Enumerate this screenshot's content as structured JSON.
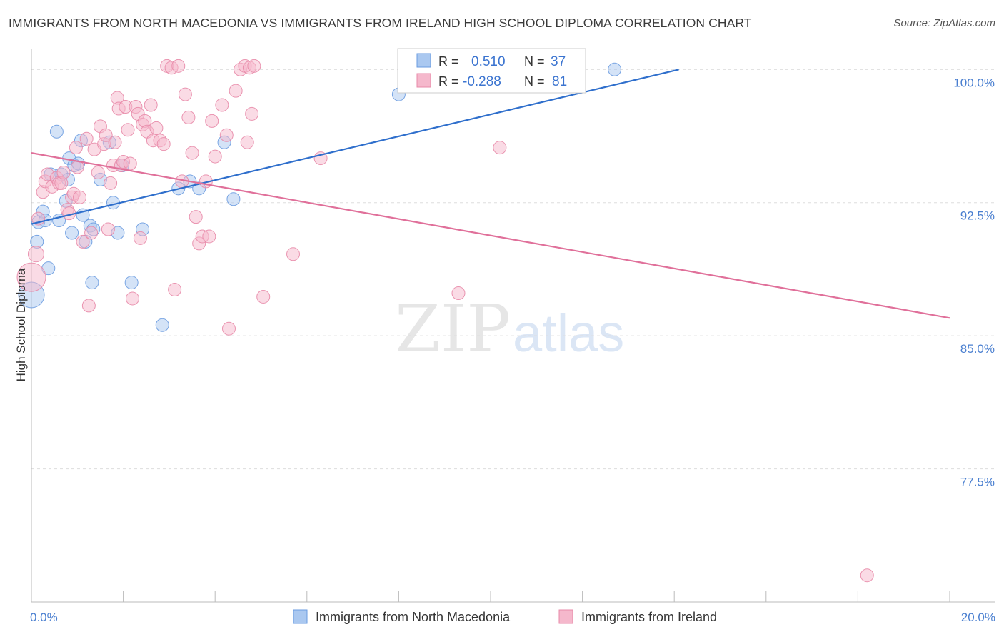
{
  "title": "IMMIGRANTS FROM NORTH MACEDONIA VS IMMIGRANTS FROM IRELAND HIGH SCHOOL DIPLOMA CORRELATION CHART",
  "source": "Source: ZipAtlas.com",
  "watermark": {
    "zip": "ZIP",
    "atlas": "atlas"
  },
  "colors": {
    "blue_fill": "#aac8f0",
    "blue_stroke": "#6a9be0",
    "blue_line": "#2f6fcc",
    "pink_fill": "#f5b8cc",
    "pink_stroke": "#e88aa8",
    "pink_line": "#e0709a",
    "tick_text": "#4a7fd0",
    "grid": "#dddddd"
  },
  "legend": {
    "rows": [
      {
        "r_label": "R =",
        "r_value": "0.510",
        "n_label": "N =",
        "n_value": "37",
        "series": "blue"
      },
      {
        "r_label": "R =",
        "r_value": "-0.288",
        "n_label": "N =",
        "n_value": "81",
        "series": "pink"
      }
    ]
  },
  "bottom_legend": [
    {
      "label": "Immigrants from North Macedonia",
      "series": "blue"
    },
    {
      "label": "Immigrants from Ireland",
      "series": "pink"
    }
  ],
  "chart_data": {
    "type": "scatter",
    "title": "IMMIGRANTS FROM NORTH MACEDONIA VS IMMIGRANTS FROM IRELAND HIGH SCHOOL DIPLOMA CORRELATION CHART",
    "xlabel": "",
    "ylabel": "High School Diploma",
    "xlim": [
      0,
      20
    ],
    "ylim": [
      70.0,
      101.5
    ],
    "x_tick_labels": [
      {
        "value": 0,
        "label": "0.0%"
      },
      {
        "value": 20,
        "label": "20.0%"
      }
    ],
    "y_tick_labels": [
      {
        "value": 77.5,
        "label": "77.5%"
      },
      {
        "value": 85.0,
        "label": "85.0%"
      },
      {
        "value": 92.5,
        "label": "92.5%"
      },
      {
        "value": 100.0,
        "label": "100.0%"
      }
    ],
    "y_grid": [
      77.5,
      85.0,
      92.5,
      100.0
    ],
    "series": [
      {
        "name": "Immigrants from North Macedonia",
        "color": "blue",
        "R": 0.51,
        "N": 37,
        "trend": {
          "x": [
            0.0,
            14.1
          ],
          "y": [
            91.3,
            100.0
          ]
        },
        "points": [
          [
            0.0,
            87.3,
            18
          ],
          [
            0.12,
            90.3,
            9
          ],
          [
            0.15,
            91.4,
            9
          ],
          [
            0.25,
            92.0,
            9
          ],
          [
            0.3,
            91.5,
            9
          ],
          [
            0.37,
            88.8,
            9
          ],
          [
            0.42,
            94.1,
            9
          ],
          [
            0.55,
            96.5,
            9
          ],
          [
            0.6,
            91.5,
            9
          ],
          [
            0.65,
            94.1,
            9
          ],
          [
            0.75,
            92.6,
            9
          ],
          [
            0.8,
            93.8,
            9
          ],
          [
            0.82,
            95.0,
            9
          ],
          [
            0.88,
            90.8,
            9
          ],
          [
            0.93,
            94.6,
            9
          ],
          [
            1.02,
            94.7,
            9
          ],
          [
            1.08,
            96.0,
            9
          ],
          [
            1.12,
            91.8,
            9
          ],
          [
            1.18,
            90.3,
            9
          ],
          [
            1.28,
            91.2,
            9
          ],
          [
            1.32,
            88.0,
            9
          ],
          [
            1.35,
            91.0,
            9
          ],
          [
            1.5,
            93.8,
            9
          ],
          [
            1.7,
            95.9,
            9
          ],
          [
            1.78,
            92.5,
            9
          ],
          [
            1.88,
            90.8,
            9
          ],
          [
            1.98,
            94.6,
            9
          ],
          [
            2.18,
            88.0,
            9
          ],
          [
            2.42,
            91.0,
            9
          ],
          [
            2.85,
            85.6,
            9
          ],
          [
            3.2,
            93.3,
            9
          ],
          [
            3.45,
            93.7,
            9
          ],
          [
            3.65,
            93.3,
            9
          ],
          [
            4.2,
            95.9,
            9
          ],
          [
            4.4,
            92.7,
            9
          ],
          [
            8.0,
            98.6,
            9
          ],
          [
            12.7,
            100.0,
            9
          ]
        ]
      },
      {
        "name": "Immigrants from Ireland",
        "color": "pink",
        "R": -0.288,
        "N": 81,
        "trend": {
          "x": [
            0.0,
            20.0
          ],
          "y": [
            95.3,
            86.0
          ]
        },
        "points": [
          [
            0.0,
            88.3,
            20
          ],
          [
            0.1,
            89.6,
            11
          ],
          [
            0.15,
            91.6,
            9
          ],
          [
            0.25,
            93.1,
            9
          ],
          [
            0.3,
            93.7,
            9
          ],
          [
            0.35,
            94.1,
            9
          ],
          [
            0.45,
            93.4,
            9
          ],
          [
            0.55,
            93.9,
            9
          ],
          [
            0.6,
            93.6,
            9
          ],
          [
            0.65,
            93.6,
            9
          ],
          [
            0.7,
            94.2,
            9
          ],
          [
            0.78,
            92.1,
            9
          ],
          [
            0.82,
            91.9,
            9
          ],
          [
            0.88,
            92.8,
            9
          ],
          [
            0.92,
            93.0,
            9
          ],
          [
            0.97,
            95.6,
            9
          ],
          [
            1.0,
            94.5,
            9
          ],
          [
            1.05,
            92.8,
            9
          ],
          [
            1.12,
            90.3,
            9
          ],
          [
            1.2,
            96.1,
            9
          ],
          [
            1.25,
            86.7,
            9
          ],
          [
            1.3,
            90.8,
            9
          ],
          [
            1.37,
            95.5,
            9
          ],
          [
            1.45,
            94.2,
            9
          ],
          [
            1.5,
            96.8,
            9
          ],
          [
            1.58,
            95.8,
            9
          ],
          [
            1.62,
            96.3,
            9
          ],
          [
            1.67,
            91.0,
            9
          ],
          [
            1.72,
            93.6,
            9
          ],
          [
            1.78,
            94.6,
            9
          ],
          [
            1.82,
            95.9,
            9
          ],
          [
            1.87,
            98.4,
            9
          ],
          [
            1.9,
            97.8,
            9
          ],
          [
            1.95,
            94.6,
            9
          ],
          [
            2.0,
            94.8,
            9
          ],
          [
            2.05,
            97.9,
            9
          ],
          [
            2.1,
            96.6,
            9
          ],
          [
            2.15,
            94.7,
            9
          ],
          [
            2.2,
            87.1,
            9
          ],
          [
            2.27,
            97.9,
            9
          ],
          [
            2.32,
            97.5,
            9
          ],
          [
            2.37,
            90.5,
            9
          ],
          [
            2.42,
            96.9,
            9
          ],
          [
            2.47,
            97.1,
            9
          ],
          [
            2.52,
            96.5,
            9
          ],
          [
            2.6,
            98.0,
            9
          ],
          [
            2.65,
            96.0,
            9
          ],
          [
            2.72,
            96.7,
            9
          ],
          [
            2.8,
            96.0,
            9
          ],
          [
            2.88,
            95.8,
            9
          ],
          [
            2.95,
            100.2,
            9
          ],
          [
            3.05,
            100.1,
            9
          ],
          [
            3.12,
            87.6,
            9
          ],
          [
            3.2,
            100.2,
            9
          ],
          [
            3.28,
            93.7,
            9
          ],
          [
            3.35,
            98.6,
            9
          ],
          [
            3.42,
            97.3,
            9
          ],
          [
            3.5,
            95.3,
            9
          ],
          [
            3.58,
            91.7,
            9
          ],
          [
            3.65,
            90.2,
            9
          ],
          [
            3.72,
            90.6,
            9
          ],
          [
            3.8,
            93.7,
            9
          ],
          [
            3.87,
            90.6,
            9
          ],
          [
            3.93,
            97.1,
            9
          ],
          [
            4.0,
            95.1,
            9
          ],
          [
            4.15,
            98.0,
            9
          ],
          [
            4.25,
            96.3,
            9
          ],
          [
            4.3,
            85.4,
            9
          ],
          [
            4.45,
            98.8,
            9
          ],
          [
            4.55,
            100.0,
            9
          ],
          [
            4.65,
            100.2,
            9
          ],
          [
            4.7,
            95.9,
            9
          ],
          [
            4.75,
            100.1,
            9
          ],
          [
            4.8,
            97.5,
            9
          ],
          [
            4.85,
            100.2,
            9
          ],
          [
            5.05,
            87.2,
            9
          ],
          [
            5.7,
            89.6,
            9
          ],
          [
            6.3,
            95.0,
            9
          ],
          [
            9.3,
            87.4,
            9
          ],
          [
            10.2,
            95.6,
            9
          ],
          [
            18.2,
            71.5,
            9
          ]
        ]
      }
    ]
  }
}
